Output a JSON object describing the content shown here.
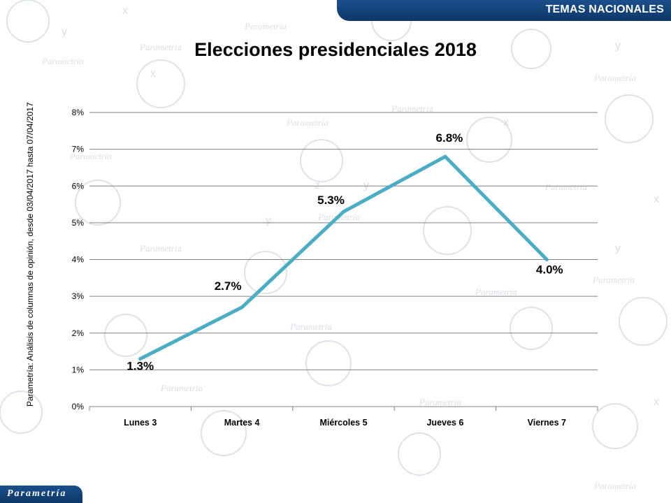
{
  "header": {
    "section_label": "TEMAS NACIONALES"
  },
  "logo": {
    "text": "Parametría"
  },
  "source_note": "Parametría: Análisis de columnas de opinión, desde 03/04/2017 hasta 07/04/2017",
  "chart_data": {
    "type": "line",
    "title": "Elecciones presidenciales 2018",
    "xlabel": "",
    "ylabel": "",
    "categories": [
      "Lunes 3",
      "Martes 4",
      "Miércoles 5",
      "Jueves 6",
      "Viernes 7"
    ],
    "series": [
      {
        "values": [
          1.3,
          2.7,
          5.3,
          6.8,
          4.0
        ],
        "labels": [
          "1.3%",
          "2.7%",
          "5.3%",
          "6.8%",
          "4.0%"
        ]
      }
    ],
    "ylim": [
      0,
      8
    ],
    "yticks": [
      "0%",
      "1%",
      "2%",
      "3%",
      "4%",
      "5%",
      "6%",
      "7%",
      "8%"
    ],
    "grid": true,
    "legend": "none",
    "colors": {
      "line": "#4bacc6",
      "grid": "#808080",
      "brand": "#1a4f8c"
    }
  }
}
